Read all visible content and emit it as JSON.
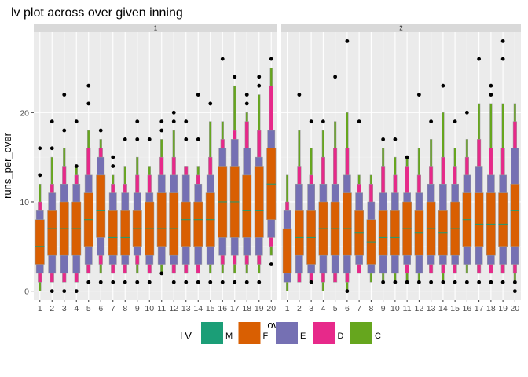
{
  "chart_data": {
    "type": "lv-boxplot",
    "title": "lv plot across over given inning",
    "xlabel": "over",
    "ylabel": "runs_per_over",
    "x_ticks": [
      "1",
      "2",
      "3",
      "4",
      "5",
      "6",
      "7",
      "8",
      "9",
      "10",
      "11",
      "12",
      "13",
      "14",
      "15",
      "16",
      "17",
      "18",
      "19",
      "20"
    ],
    "y_ticks": [
      0,
      10,
      20
    ],
    "ylim": [
      -1,
      29
    ],
    "legend": {
      "title": "LV",
      "position": "bottom",
      "entries": [
        {
          "key": "M",
          "color": "#1B9E77"
        },
        {
          "key": "F",
          "color": "#D95F02"
        },
        {
          "key": "E",
          "color": "#7570B3"
        },
        {
          "key": "D",
          "color": "#E7298A"
        },
        {
          "key": "C",
          "color": "#66A61E"
        }
      ]
    },
    "box_outline_color": "#999999",
    "panels": [
      {
        "strip": "1",
        "boxes": [
          {
            "over": "1",
            "median": 5,
            "F": [
              3,
              8
            ],
            "E": [
              2,
              9
            ],
            "D": [
              1,
              10
            ],
            "C": [
              0,
              12
            ],
            "outliers": [
              13,
              16
            ]
          },
          {
            "over": "2",
            "median": 7,
            "F": [
              4,
              9
            ],
            "E": [
              2,
              11
            ],
            "D": [
              1,
              12
            ],
            "C": [
              1,
              15
            ],
            "outliers": [
              0,
              16,
              19
            ]
          },
          {
            "over": "3",
            "median": 7,
            "F": [
              4,
              10
            ],
            "E": [
              2,
              12
            ],
            "D": [
              1,
              14
            ],
            "C": [
              1,
              16
            ],
            "outliers": [
              0,
              18,
              22
            ]
          },
          {
            "over": "4",
            "median": 7,
            "F": [
              4,
              10
            ],
            "E": [
              2,
              12
            ],
            "D": [
              1,
              13
            ],
            "C": [
              1,
              14
            ],
            "outliers": [
              0,
              14,
              19
            ]
          },
          {
            "over": "5",
            "median": 8,
            "F": [
              5,
              11
            ],
            "E": [
              3,
              13
            ],
            "D": [
              2,
              16
            ],
            "C": [
              2,
              18
            ],
            "outliers": [
              1,
              21,
              23
            ]
          },
          {
            "over": "6",
            "median": 9,
            "F": [
              6,
              13
            ],
            "E": [
              4,
              15
            ],
            "D": [
              3,
              16
            ],
            "C": [
              2,
              17
            ],
            "outliers": [
              1,
              18
            ]
          },
          {
            "over": "7",
            "median": 6,
            "F": [
              4,
              9
            ],
            "E": [
              3,
              11
            ],
            "D": [
              2,
              12
            ],
            "C": [
              2,
              13
            ],
            "outliers": [
              1,
              14,
              15
            ]
          },
          {
            "over": "8",
            "median": 6,
            "F": [
              4,
              9
            ],
            "E": [
              3,
              11
            ],
            "D": [
              2,
              12
            ],
            "C": [
              2,
              14
            ],
            "outliers": [
              1,
              17
            ]
          },
          {
            "over": "9",
            "median": 7,
            "F": [
              5,
              9
            ],
            "E": [
              4,
              11
            ],
            "D": [
              3,
              13
            ],
            "C": [
              2,
              15
            ],
            "outliers": [
              1,
              17,
              19
            ]
          },
          {
            "over": "10",
            "median": 7,
            "F": [
              4,
              10
            ],
            "E": [
              3,
              11
            ],
            "D": [
              2,
              13
            ],
            "C": [
              2,
              14
            ],
            "outliers": [
              1,
              17
            ]
          },
          {
            "over": "11",
            "median": 7,
            "F": [
              5,
              11
            ],
            "E": [
              3,
              13
            ],
            "D": [
              3,
              15
            ],
            "C": [
              2,
              17
            ],
            "outliers": [
              2,
              18,
              19
            ]
          },
          {
            "over": "12",
            "median": 7,
            "F": [
              4,
              11
            ],
            "E": [
              3,
              13
            ],
            "D": [
              2,
              15
            ],
            "C": [
              2,
              18
            ],
            "outliers": [
              1,
              19,
              20
            ]
          },
          {
            "over": "13",
            "median": 8,
            "F": [
              5,
              10
            ],
            "E": [
              3,
              13
            ],
            "D": [
              2,
              14
            ],
            "C": [
              2,
              14
            ],
            "outliers": [
              1,
              17,
              19
            ]
          },
          {
            "over": "14",
            "median": 8,
            "F": [
              5,
              10
            ],
            "E": [
              3,
              12
            ],
            "D": [
              2,
              13
            ],
            "C": [
              2,
              14
            ],
            "outliers": [
              1,
              17,
              22
            ]
          },
          {
            "over": "15",
            "median": 8,
            "F": [
              5,
              11
            ],
            "E": [
              3,
              13
            ],
            "D": [
              3,
              15
            ],
            "C": [
              2,
              19
            ],
            "outliers": [
              1,
              21
            ]
          },
          {
            "over": "16",
            "median": 10,
            "F": [
              6,
              14
            ],
            "E": [
              4,
              16
            ],
            "D": [
              3,
              17
            ],
            "C": [
              2,
              19
            ],
            "outliers": [
              1,
              26
            ]
          },
          {
            "over": "17",
            "median": 10,
            "F": [
              6,
              14
            ],
            "E": [
              4,
              17
            ],
            "D": [
              3,
              18
            ],
            "C": [
              2,
              23
            ],
            "outliers": [
              1,
              24
            ]
          },
          {
            "over": "18",
            "median": 9,
            "F": [
              6,
              13
            ],
            "E": [
              4,
              16
            ],
            "D": [
              3,
              19
            ],
            "C": [
              2,
              20
            ],
            "outliers": [
              1,
              21,
              22
            ]
          },
          {
            "over": "19",
            "median": 9,
            "F": [
              6,
              14
            ],
            "E": [
              4,
              15
            ],
            "D": [
              3,
              18
            ],
            "C": [
              2,
              22
            ],
            "outliers": [
              1,
              23,
              24
            ]
          },
          {
            "over": "20",
            "median": 12,
            "F": [
              8,
              16
            ],
            "E": [
              6,
              18
            ],
            "D": [
              5,
              23
            ],
            "C": [
              4,
              25
            ],
            "outliers": [
              3,
              26
            ]
          }
        ]
      },
      {
        "strip": "2",
        "boxes": [
          {
            "over": "1",
            "median": 4.5,
            "F": [
              2,
              7
            ],
            "E": [
              1,
              9
            ],
            "D": [
              1,
              10
            ],
            "C": [
              0,
              13
            ],
            "outliers": []
          },
          {
            "over": "2",
            "median": 6,
            "F": [
              4,
              9
            ],
            "E": [
              2,
              12
            ],
            "D": [
              1,
              14
            ],
            "C": [
              1,
              18
            ],
            "outliers": [
              22
            ]
          },
          {
            "over": "3",
            "median": 6,
            "F": [
              3,
              9
            ],
            "E": [
              2,
              12
            ],
            "D": [
              1,
              13
            ],
            "C": [
              1,
              16
            ],
            "outliers": [
              1,
              19
            ]
          },
          {
            "over": "4",
            "median": 7,
            "F": [
              4,
              10
            ],
            "E": [
              2,
              12
            ],
            "D": [
              1,
              15
            ],
            "C": [
              0,
              18
            ],
            "outliers": [
              19
            ]
          },
          {
            "over": "5",
            "median": 7,
            "F": [
              4,
              10
            ],
            "E": [
              2,
              12
            ],
            "D": [
              1,
              16
            ],
            "C": [
              1,
              19
            ],
            "outliers": [
              24
            ]
          },
          {
            "over": "6",
            "median": 7,
            "F": [
              4,
              11
            ],
            "E": [
              2,
              13
            ],
            "D": [
              1,
              16
            ],
            "C": [
              0,
              20
            ],
            "outliers": [
              0,
              28
            ]
          },
          {
            "over": "7",
            "median": 6.5,
            "F": [
              4,
              9
            ],
            "E": [
              3,
              11
            ],
            "D": [
              2,
              12
            ],
            "C": [
              2,
              13
            ],
            "outliers": [
              19
            ]
          },
          {
            "over": "8",
            "median": 5.5,
            "F": [
              3,
              8
            ],
            "E": [
              2,
              10
            ],
            "D": [
              2,
              12
            ],
            "C": [
              1,
              13
            ],
            "outliers": []
          },
          {
            "over": "9",
            "median": 6,
            "F": [
              4,
              9
            ],
            "E": [
              2,
              11
            ],
            "D": [
              2,
              14
            ],
            "C": [
              1,
              16
            ],
            "outliers": [
              1,
              17
            ]
          },
          {
            "over": "10",
            "median": 6,
            "F": [
              4,
              9
            ],
            "E": [
              2,
              11
            ],
            "D": [
              2,
              13
            ],
            "C": [
              1,
              15
            ],
            "outliers": [
              1,
              17
            ]
          },
          {
            "over": "11",
            "median": 7,
            "F": [
              4,
              10
            ],
            "E": [
              3,
              11
            ],
            "D": [
              2,
              14
            ],
            "C": [
              1,
              15
            ],
            "outliers": [
              1,
              15
            ]
          },
          {
            "over": "12",
            "median": 6.5,
            "F": [
              4,
              9
            ],
            "E": [
              2,
              11
            ],
            "D": [
              2,
              13
            ],
            "C": [
              1,
              16
            ],
            "outliers": [
              1,
              22
            ]
          },
          {
            "over": "13",
            "median": 7,
            "F": [
              4,
              10
            ],
            "E": [
              3,
              12
            ],
            "D": [
              2,
              14
            ],
            "C": [
              2,
              17
            ],
            "outliers": [
              1,
              19
            ]
          },
          {
            "over": "14",
            "median": 6.5,
            "F": [
              4,
              9
            ],
            "E": [
              3,
              12
            ],
            "D": [
              2,
              15
            ],
            "C": [
              1,
              20
            ],
            "outliers": [
              1,
              23
            ]
          },
          {
            "over": "15",
            "median": 7,
            "F": [
              4,
              10
            ],
            "E": [
              3,
              12
            ],
            "D": [
              2,
              14
            ],
            "C": [
              2,
              16
            ],
            "outliers": [
              1,
              19
            ]
          },
          {
            "over": "16",
            "median": 8,
            "F": [
              5,
              11
            ],
            "E": [
              3,
              13
            ],
            "D": [
              3,
              15
            ],
            "C": [
              2,
              17
            ],
            "outliers": [
              1,
              20
            ]
          },
          {
            "over": "17",
            "median": 7.5,
            "F": [
              5,
              11
            ],
            "E": [
              3,
              14
            ],
            "D": [
              2,
              17
            ],
            "C": [
              2,
              21
            ],
            "outliers": [
              1,
              26
            ]
          },
          {
            "over": "18",
            "median": 7.5,
            "F": [
              4,
              11
            ],
            "E": [
              3,
              13
            ],
            "D": [
              2,
              16
            ],
            "C": [
              2,
              21
            ],
            "outliers": [
              1,
              22,
              23
            ]
          },
          {
            "over": "19",
            "median": 7.5,
            "F": [
              5,
              11
            ],
            "E": [
              3,
              13
            ],
            "D": [
              2,
              16
            ],
            "C": [
              2,
              21
            ],
            "outliers": [
              1,
              26,
              28
            ]
          },
          {
            "over": "20",
            "median": 9,
            "F": [
              5,
              12
            ],
            "E": [
              3,
              16
            ],
            "D": [
              2,
              19
            ],
            "C": [
              1,
              21
            ],
            "outliers": [
              0,
              1
            ]
          }
        ]
      }
    ]
  }
}
